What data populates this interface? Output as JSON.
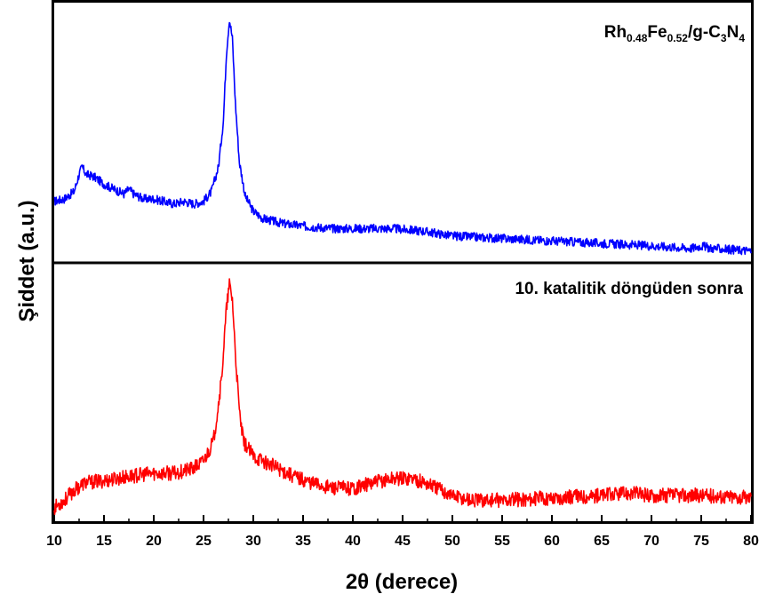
{
  "chart_data": {
    "type": "line",
    "xlabel": "2θ (derece)",
    "ylabel": "Şiddet (a.u.)",
    "xlim": [
      10,
      80
    ],
    "xticks": [
      10,
      15,
      20,
      25,
      30,
      35,
      40,
      45,
      50,
      55,
      60,
      65,
      70,
      75,
      80
    ],
    "grid": false,
    "legend": "none",
    "series": [
      {
        "name": "Rh0.48Fe0.52/g-C3N4",
        "name_parts": {
          "a": "Rh",
          "a_sub": "0.48",
          "b": "Fe",
          "b_sub": "0.52",
          "c": "/g-C",
          "c_sub": "3",
          "d": "N",
          "d_sub": "4"
        },
        "color": "#0000ff",
        "panel": "top",
        "ylim": [
          0,
          1
        ],
        "x": [
          10,
          11,
          12,
          12.5,
          12.8,
          13.2,
          14,
          15,
          16,
          17,
          17.5,
          18,
          19,
          20,
          21,
          22,
          23,
          24,
          25,
          25.8,
          26.5,
          27,
          27.3,
          27.6,
          27.9,
          28.2,
          28.6,
          29.2,
          30,
          31,
          33,
          35,
          38,
          41,
          44,
          47,
          50,
          55,
          60,
          65,
          70,
          74,
          75,
          76,
          80
        ],
        "y": [
          0.22,
          0.23,
          0.26,
          0.33,
          0.36,
          0.33,
          0.32,
          0.29,
          0.27,
          0.25,
          0.27,
          0.25,
          0.23,
          0.23,
          0.22,
          0.21,
          0.22,
          0.21,
          0.22,
          0.26,
          0.36,
          0.55,
          0.82,
          0.96,
          0.88,
          0.62,
          0.38,
          0.24,
          0.18,
          0.15,
          0.13,
          0.12,
          0.11,
          0.11,
          0.11,
          0.1,
          0.08,
          0.07,
          0.06,
          0.05,
          0.04,
          0.03,
          0.04,
          0.03,
          0.02
        ]
      },
      {
        "name": "10. katalitik döngüden sonra",
        "color": "#ff0000",
        "panel": "bottom",
        "ylim": [
          0,
          1
        ],
        "x": [
          10,
          11,
          12,
          13,
          15,
          18,
          20,
          22,
          24,
          25,
          26,
          26.8,
          27.3,
          27.6,
          27.9,
          28.2,
          28.6,
          29,
          30,
          32,
          34,
          36,
          38,
          40,
          42,
          44,
          46,
          48,
          50,
          52,
          55,
          60,
          65,
          68,
          70,
          75,
          80
        ],
        "y": [
          0.03,
          0.06,
          0.1,
          0.13,
          0.14,
          0.16,
          0.17,
          0.17,
          0.19,
          0.22,
          0.3,
          0.55,
          0.84,
          0.94,
          0.88,
          0.66,
          0.42,
          0.3,
          0.24,
          0.2,
          0.16,
          0.13,
          0.11,
          0.11,
          0.13,
          0.15,
          0.15,
          0.12,
          0.08,
          0.06,
          0.06,
          0.07,
          0.08,
          0.09,
          0.08,
          0.08,
          0.07
        ]
      }
    ]
  }
}
